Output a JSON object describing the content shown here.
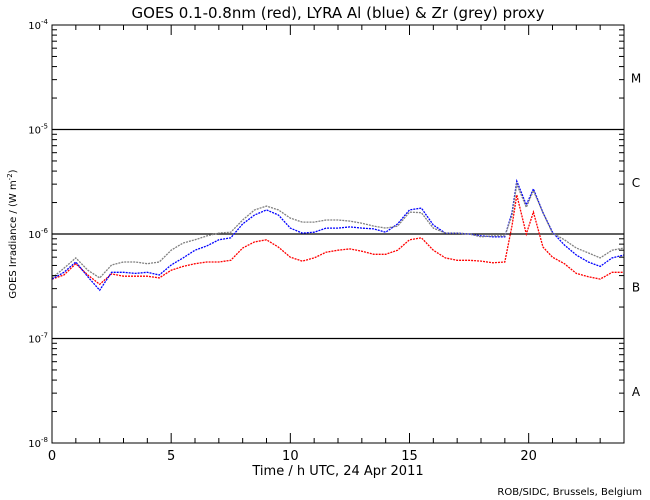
{
  "chart_data": {
    "type": "line",
    "title": "GOES 0.1-0.8nm (red), LYRA Al (blue) & Zr (grey) proxy",
    "xlabel": "Time / h UTC, 24 Apr 2011",
    "ylabel": "GOES Irradiance / (W m",
    "ylabel_sup": "-2",
    "ylabel_end": ")",
    "xlim": [
      0,
      24
    ],
    "ylim": [
      1e-08,
      0.0001
    ],
    "yscale": "log",
    "x_ticks": [
      "0",
      "5",
      "10",
      "15",
      "20"
    ],
    "y_ticks": [
      {
        "base": "10",
        "exp": "-4",
        "value": 0.0001
      },
      {
        "base": "10",
        "exp": "-5",
        "value": 1e-05
      },
      {
        "base": "10",
        "exp": "-6",
        "value": 1e-06
      },
      {
        "base": "10",
        "exp": "-7",
        "value": 1e-07
      },
      {
        "base": "10",
        "exp": "-8",
        "value": 1e-08
      }
    ],
    "flare_classes": [
      {
        "label": "M",
        "value": 3.16e-05
      },
      {
        "label": "C",
        "value": 3.16e-06
      },
      {
        "label": "B",
        "value": 3.16e-07
      },
      {
        "label": "A",
        "value": 3.16e-08
      }
    ],
    "reference_lines": [
      1e-05,
      1e-06,
      1e-07
    ],
    "series": [
      {
        "name": "GOES 0.1-0.8nm",
        "color": "#ff0000",
        "x": [
          0,
          0.5,
          1,
          1.5,
          2,
          2.5,
          3,
          3.5,
          4,
          4.5,
          5,
          5.5,
          6,
          6.5,
          7,
          7.5,
          8,
          8.5,
          9,
          9.5,
          10,
          10.5,
          11,
          11.5,
          12,
          12.5,
          13,
          13.5,
          14,
          14.5,
          15,
          15.5,
          16,
          16.5,
          17,
          17.5,
          18,
          18.5,
          19,
          19.3,
          19.5,
          19.9,
          20.2,
          20.6,
          21,
          21.5,
          22,
          22.5,
          23,
          23.5,
          24
        ],
        "y": [
          3.7e-07,
          4.05e-07,
          5.2e-07,
          4.05e-07,
          3.3e-07,
          4.15e-07,
          3.95e-07,
          3.95e-07,
          3.95e-07,
          3.8e-07,
          4.5e-07,
          4.9e-07,
          5.2e-07,
          5.4e-07,
          5.4e-07,
          5.6e-07,
          7.35e-07,
          8.4e-07,
          8.8e-07,
          7.5e-07,
          6e-07,
          5.5e-07,
          5.9e-07,
          6.7e-07,
          7e-07,
          7.2e-07,
          6.85e-07,
          6.4e-07,
          6.4e-07,
          7e-07,
          8.8e-07,
          9.2e-07,
          7e-07,
          5.9e-07,
          5.6e-07,
          5.6e-07,
          5.5e-07,
          5.3e-07,
          5.4e-07,
          1.2e-06,
          2.36e-06,
          1e-06,
          1.62e-06,
          7.5e-07,
          6e-07,
          5.2e-07,
          4.2e-07,
          3.9e-07,
          3.7e-07,
          4.3e-07,
          4.3e-07
        ]
      },
      {
        "name": "LYRA Al proxy",
        "color": "#0000ff",
        "x": [
          0,
          0.5,
          1,
          1.5,
          2,
          2.5,
          3,
          3.5,
          4,
          4.5,
          5,
          5.5,
          6,
          6.5,
          7,
          7.5,
          8,
          8.5,
          9,
          9.5,
          10,
          10.5,
          11,
          11.5,
          12,
          12.5,
          13,
          13.5,
          14,
          14.5,
          15,
          15.5,
          16,
          16.5,
          17,
          17.5,
          18,
          18.5,
          19,
          19.3,
          19.5,
          19.9,
          20.2,
          20.6,
          21,
          21.5,
          22,
          22.5,
          23,
          23.5,
          24
        ],
        "y": [
          3.7e-07,
          4.3e-07,
          5.4e-07,
          3.9e-07,
          2.9e-07,
          4.3e-07,
          4.3e-07,
          4.2e-07,
          4.3e-07,
          4.05e-07,
          5.05e-07,
          5.9e-07,
          7e-07,
          7.7e-07,
          8.8e-07,
          9.2e-07,
          1.25e-06,
          1.52e-06,
          1.7e-06,
          1.52e-06,
          1.14e-06,
          1.02e-06,
          1.04e-06,
          1.14e-06,
          1.14e-06,
          1.17e-06,
          1.14e-06,
          1.12e-06,
          1.04e-06,
          1.25e-06,
          1.7e-06,
          1.77e-06,
          1.22e-06,
          1.02e-06,
          1.02e-06,
          1e-06,
          9.6e-07,
          9.4e-07,
          9.4e-07,
          1.6e-06,
          3.2e-06,
          1.9e-06,
          2.7e-06,
          1.6e-06,
          1.04e-06,
          7.85e-07,
          6.3e-07,
          5.4e-07,
          4.9e-07,
          5.9e-07,
          6.3e-07
        ]
      },
      {
        "name": "LYRA Zr proxy",
        "color": "#808080",
        "x": [
          0,
          0.5,
          1,
          1.5,
          2,
          2.5,
          3,
          3.5,
          4,
          4.5,
          5,
          5.5,
          6,
          6.5,
          7,
          7.5,
          8,
          8.5,
          9,
          9.5,
          10,
          10.5,
          11,
          11.5,
          12,
          12.5,
          13,
          13.5,
          14,
          14.5,
          15,
          15.5,
          16,
          16.5,
          17,
          17.5,
          18,
          18.5,
          19,
          19.3,
          19.5,
          19.9,
          20.2,
          20.6,
          21,
          21.5,
          22,
          22.5,
          23,
          23.5,
          24
        ],
        "y": [
          3.8e-07,
          4.7e-07,
          5.9e-07,
          4.5e-07,
          3.8e-07,
          5.05e-07,
          5.4e-07,
          5.4e-07,
          5.2e-07,
          5.4e-07,
          7e-07,
          8.2e-07,
          8.8e-07,
          9.6e-07,
          1.02e-06,
          1.04e-06,
          1.36e-06,
          1.7e-06,
          1.85e-06,
          1.7e-06,
          1.42e-06,
          1.3e-06,
          1.3e-06,
          1.36e-06,
          1.36e-06,
          1.33e-06,
          1.27e-06,
          1.19e-06,
          1.14e-06,
          1.19e-06,
          1.62e-06,
          1.6e-06,
          1.14e-06,
          1.02e-06,
          1.02e-06,
          1e-06,
          9.4e-07,
          9.6e-07,
          9.6e-07,
          1.5e-06,
          3e-06,
          1.8e-06,
          2.6e-06,
          1.6e-06,
          1.02e-06,
          8.8e-07,
          7.35e-07,
          6.6e-07,
          5.9e-07,
          7e-07,
          7.35e-07
        ]
      }
    ],
    "credit": "ROB/SIDC, Brussels, Belgium"
  }
}
